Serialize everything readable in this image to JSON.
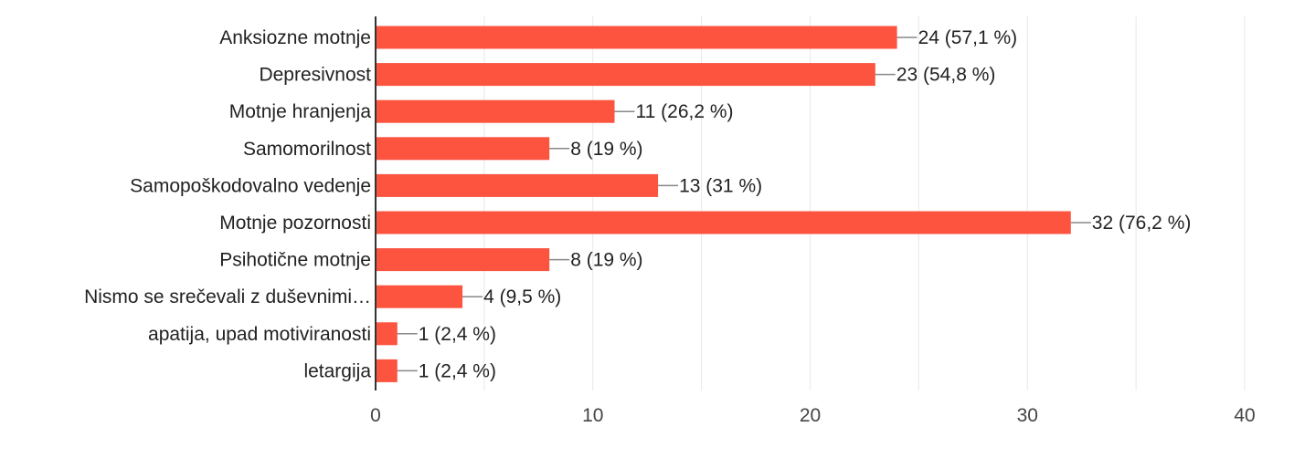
{
  "chart_data": {
    "type": "bar",
    "orientation": "horizontal",
    "categories": [
      "Anksiozne motnje",
      "Depresivnost",
      "Motnje hranjenja",
      "Samomorilnost",
      "Samopoškodovalno vedenje",
      "Motnje pozornosti",
      "Psihotične motnje",
      "Nismo se srečevali z duševnimi…",
      "apatija, upad motiviranosti",
      "letargija"
    ],
    "values": [
      24,
      23,
      11,
      8,
      13,
      32,
      8,
      4,
      1,
      1
    ],
    "data_labels": [
      "24 (57,1 %)",
      "23 (54,8 %)",
      "11 (26,2 %)",
      "8 (19 %)",
      "13 (31 %)",
      "32 (76,2 %)",
      "8 (19 %)",
      "4 (9,5 %)",
      "1 (2,4 %)",
      "1 (2,4 %)"
    ],
    "xlim": [
      0,
      40
    ],
    "xticks": [
      0,
      10,
      20,
      30,
      40
    ],
    "grid": true,
    "bar_color": "#fc543f"
  }
}
